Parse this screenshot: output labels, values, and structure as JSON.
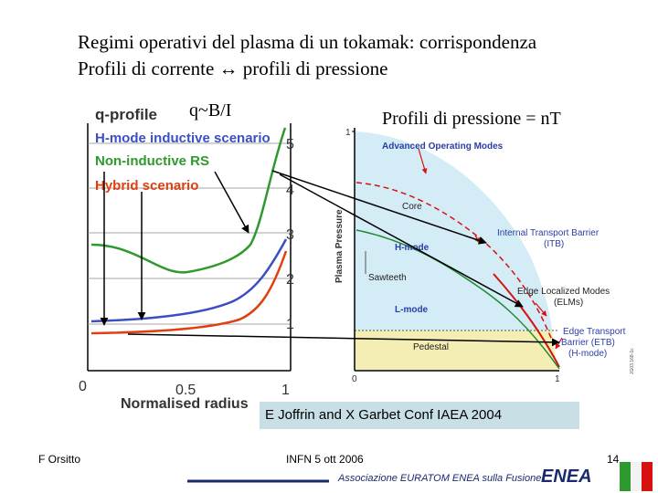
{
  "slide": {
    "title_line1": "Regimi operativi del plasma di un tokamak: corrispondenza",
    "title_line2": "Profili di corrente ↔ profili di pressione",
    "annotation_q": "q~B/I",
    "annotation_pressure": "Profili di pressione = nT",
    "caption": "E Joffrin and X Garbet Conf IAEA 2004"
  },
  "q_chart": {
    "title": "q-profile",
    "legend": [
      {
        "label": "H-mode inductive scenario",
        "color": "#3a4fc4"
      },
      {
        "label": "Non-inductive RS",
        "color": "#2e9a2e"
      },
      {
        "label": "Hybrid scenario",
        "color": "#e04010"
      }
    ],
    "xlabel": "Normalised radius",
    "x_ticks": [
      "0",
      "0.5",
      "1"
    ],
    "y_ticks": [
      "1",
      "2",
      "3",
      "4",
      "5"
    ]
  },
  "p_chart": {
    "ylabel": "Plasma Pressure",
    "x_ticks": [
      "0",
      "1"
    ],
    "y_tick_top": "1",
    "labels": {
      "aom": "Advanced Operating Modes",
      "core": "Core",
      "hmode": "H-mode",
      "sawteeth": "Sawteeth",
      "lmode": "L-mode",
      "pedestal": "Pedestal",
      "itb": [
        "Internal Transport Barrier",
        "(ITB)"
      ],
      "elm": [
        "Edge Localized Modes",
        "(ELMs)"
      ],
      "etb": [
        "Edge Transport",
        "Barrier (ETB)",
        "(H-mode)"
      ],
      "side": "JG03.168-1c"
    }
  },
  "footer": {
    "author": "F Orsitto",
    "event": "INFN 5 ott 2006",
    "page": "14",
    "association": "Associazione EURATOM ENEA sulla Fusione",
    "logo": "ENEA"
  },
  "colors": {
    "hmode_q": "#3a4fc4",
    "noninductive_q": "#2e9a2e",
    "hybrid_q": "#e04010",
    "core_fill": "#d4ecf6",
    "pedestal_fill": "#f4eeb4",
    "pressure_red": "#d81010",
    "pressure_green": "#208a30",
    "label_blue": "#2a3ea8",
    "caption_bg": "#c8dfe6"
  }
}
